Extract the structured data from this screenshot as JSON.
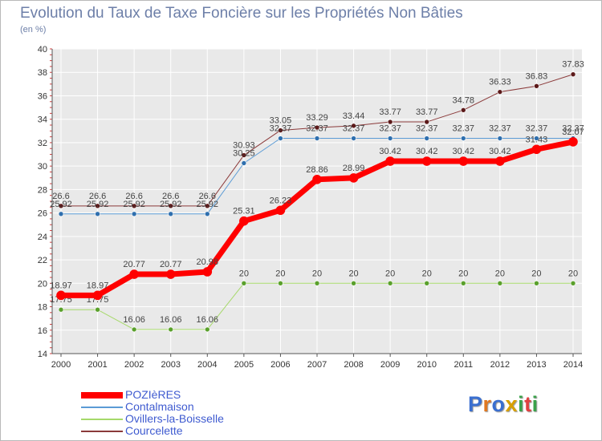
{
  "title": "Evolution du Taux de Taxe Foncière sur les Propriétés Non Bâties",
  "y_unit_label": "(en %)",
  "logo": {
    "text": "Proxiti",
    "colors": [
      "#3a6fd0",
      "#e07820",
      "#3a6fd0",
      "#d8a000",
      "#3aa14a",
      "#e04040",
      "#3aa14a"
    ]
  },
  "chart_data": {
    "type": "line",
    "title": "Evolution du Taux de Taxe Foncière sur les Propriétés Non Bâties",
    "ylabel": "(en %)",
    "xlabel": "",
    "ylim": [
      14,
      40
    ],
    "yticks": [
      14,
      16,
      18,
      20,
      22,
      24,
      26,
      28,
      30,
      32,
      34,
      36,
      38,
      40
    ],
    "grid": true,
    "legend_position": "bottom-left",
    "x": [
      "2000",
      "2001",
      "2002",
      "2003",
      "2004",
      "2005",
      "2006",
      "2007",
      "2008",
      "2009",
      "2010",
      "2011",
      "2012",
      "2013",
      "2014"
    ],
    "series": [
      {
        "name": "Courcelette",
        "color": "#8b3a3a",
        "marker_color": "#5c1a1a",
        "line_width": 1,
        "values": [
          26.6,
          26.6,
          26.6,
          26.6,
          26.6,
          30.93,
          33.05,
          33.29,
          33.44,
          33.77,
          33.77,
          34.78,
          36.33,
          36.83,
          37.83
        ],
        "labels": [
          "26.6",
          "26.6",
          "26.6",
          "26.6",
          "26.6",
          "30.93",
          "33.05",
          "33.29",
          "33.44",
          "33.77",
          "33.77",
          "34.78",
          "36.33",
          "36.83",
          "37.83"
        ]
      },
      {
        "name": "Contalmaison",
        "color": "#5b9bd5",
        "marker_color": "#2f6fae",
        "line_width": 1,
        "values": [
          25.92,
          25.92,
          25.92,
          25.92,
          25.92,
          30.25,
          32.37,
          32.37,
          32.37,
          32.37,
          32.37,
          32.37,
          32.37,
          32.37,
          32.37
        ],
        "labels": [
          "25.92",
          "25.92",
          "25.92",
          "25.92",
          "25.92",
          "30.25",
          "32.37",
          "32.37",
          "32.37",
          "32.37",
          "32.37",
          "32.37",
          "32.37",
          "32.37",
          "32.37"
        ]
      },
      {
        "name": "Ovillers-la-Boisselle",
        "color": "#a6d96a",
        "marker_color": "#5aa02c",
        "line_width": 1,
        "values": [
          17.75,
          17.75,
          16.06,
          16.06,
          16.06,
          20,
          20,
          20,
          20,
          20,
          20,
          20,
          20,
          20,
          20
        ],
        "labels": [
          "17.75",
          "17.75",
          "16.06",
          "16.06",
          "16.06",
          "20",
          "20",
          "20",
          "20",
          "20",
          "20",
          "20",
          "20",
          "20",
          "20"
        ]
      },
      {
        "name": "POZIèRES",
        "color": "#ff0000",
        "marker_color": "#ff0000",
        "line_width": 7,
        "values": [
          18.97,
          18.97,
          20.77,
          20.77,
          20.98,
          25.31,
          26.23,
          28.86,
          28.99,
          30.42,
          30.42,
          30.42,
          30.42,
          31.43,
          32.07
        ],
        "labels": [
          "18.97",
          "18.97",
          "20.77",
          "20.77",
          "20.98",
          "25.31",
          "26.23",
          "28.86",
          "28.99",
          "30.42",
          "30.42",
          "30.42",
          "30.42",
          "31.43",
          "32.07"
        ]
      }
    ]
  },
  "legend": [
    {
      "label": "POZIèRES",
      "color": "#ff0000",
      "width": 8
    },
    {
      "label": "Contalmaison",
      "color": "#5b9bd5",
      "width": 2
    },
    {
      "label": "Ovillers-la-Boisselle",
      "color": "#a6d96a",
      "width": 2
    },
    {
      "label": "Courcelette",
      "color": "#8b3a3a",
      "width": 2
    }
  ]
}
